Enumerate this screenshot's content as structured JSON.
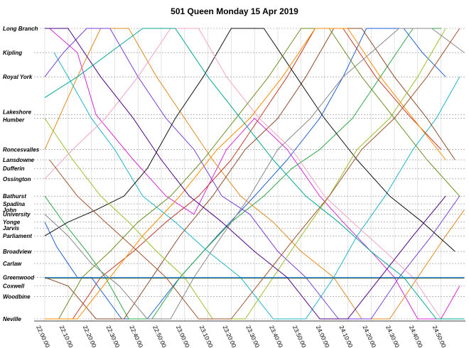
{
  "chart_data": {
    "type": "line",
    "title": "501 Queen Monday  15 Apr 2019",
    "xlabel": "",
    "ylabel": "",
    "x_ticks": [
      "22:00:00",
      "22:10:00",
      "22:20:00",
      "22:30:00",
      "22:40:00",
      "22:50:00",
      "23:00:00",
      "23:10:00",
      "23:20:00",
      "23:30:00",
      "23:40:00",
      "23:50:00",
      "24:00:00",
      "24:10:00",
      "24:20:00",
      "24:30:00",
      "24:40:00",
      "24:50:00"
    ],
    "x_range_minutes": [
      0,
      182
    ],
    "stops": [
      {
        "name": "Long Branch",
        "km": 0.0
      },
      {
        "name": "Kipling",
        "km": 1.4
      },
      {
        "name": "Royal York",
        "km": 2.8
      },
      {
        "name": "Lakeshore",
        "km": 5.0
      },
      {
        "name": "Humber",
        "km": 5.2
      },
      {
        "name": "Roncesvalles",
        "km": 7.0
      },
      {
        "name": "Lansdowne",
        "km": 7.6
      },
      {
        "name": "Dufferin",
        "km": 8.1
      },
      {
        "name": "Ossington",
        "km": 8.7
      },
      {
        "name": "Bathurst",
        "km": 9.7
      },
      {
        "name": "Spadina",
        "km": 10.15
      },
      {
        "name": "John",
        "km": 10.5
      },
      {
        "name": "University",
        "km": 10.75
      },
      {
        "name": "Yonge",
        "km": 11.2
      },
      {
        "name": "Jarvis",
        "km": 11.55
      },
      {
        "name": "Parliament",
        "km": 12.0
      },
      {
        "name": "Broadview",
        "km": 12.9
      },
      {
        "name": "Carlaw",
        "km": 13.6
      },
      {
        "name": "Greenwood",
        "km": 14.4
      },
      {
        "name": "Coxwell",
        "km": 14.9
      },
      {
        "name": "Woodbine",
        "km": 15.5
      },
      {
        "name": "Neville",
        "km": 16.8
      }
    ],
    "grid": true,
    "legend": "none",
    "series": [
      {
        "color": "#1f5fd6",
        "x": [
          0,
          5,
          14,
          20,
          33,
          44,
          58,
          74,
          90,
          104,
          118,
          128,
          138,
          154,
          162,
          172
        ],
        "y": [
          11.2,
          12.6,
          14.4,
          14.4,
          16.8,
          16.8,
          14.4,
          12.0,
          9.7,
          7.6,
          5.2,
          2.8,
          0.0,
          0.0,
          1.4,
          2.8
        ]
      },
      {
        "color": "#d62ad6",
        "x": [
          2,
          14,
          22,
          38,
          52,
          64,
          78,
          90,
          104,
          118,
          128,
          140,
          150,
          160,
          170,
          178
        ],
        "y": [
          0.0,
          1.4,
          5.0,
          7.6,
          9.7,
          10.75,
          7.0,
          5.2,
          7.0,
          9.7,
          11.2,
          12.9,
          14.4,
          16.8,
          16.8,
          14.9
        ]
      },
      {
        "color": "#2fa84a",
        "x": [
          0,
          8,
          18,
          26,
          36,
          46,
          58,
          68,
          80,
          94,
          106,
          118,
          132,
          144,
          158,
          170
        ],
        "y": [
          9.7,
          11.2,
          12.9,
          14.4,
          16.8,
          16.8,
          14.4,
          12.9,
          11.2,
          9.7,
          8.1,
          7.0,
          5.2,
          2.8,
          0.0,
          0.0
        ]
      },
      {
        "color": "#e08a1e",
        "x": [
          0,
          6,
          14,
          24,
          36,
          48,
          60,
          72,
          84,
          98,
          110,
          124,
          136,
          148,
          160,
          172,
          180
        ],
        "y": [
          7.0,
          5.2,
          2.8,
          0.0,
          0.0,
          2.8,
          5.2,
          7.6,
          9.7,
          11.2,
          12.9,
          14.4,
          16.8,
          16.8,
          14.4,
          12.0,
          10.5
        ]
      },
      {
        "color": "#20b5c8",
        "x": [
          4,
          10,
          20,
          30,
          42,
          56,
          70,
          84,
          98,
          112,
          124,
          134,
          146,
          158,
          168,
          178
        ],
        "y": [
          1.4,
          2.8,
          5.2,
          7.0,
          9.7,
          11.2,
          12.9,
          14.4,
          16.8,
          16.8,
          14.4,
          12.0,
          9.7,
          7.0,
          5.2,
          2.8
        ]
      },
      {
        "color": "#8b4a2a",
        "x": [
          0,
          10,
          22,
          34,
          46,
          58,
          72,
          86,
          100,
          112,
          124,
          136,
          150,
          164,
          176
        ],
        "y": [
          14.4,
          14.9,
          16.8,
          16.8,
          14.4,
          12.0,
          9.7,
          7.0,
          5.2,
          2.8,
          0.0,
          0.0,
          2.8,
          5.2,
          7.6
        ]
      },
      {
        "color": "#7a3fd8",
        "x": [
          0,
          8,
          18,
          28,
          40,
          52,
          64,
          76,
          88,
          100,
          112,
          126,
          140,
          152,
          166,
          178
        ],
        "y": [
          2.8,
          1.4,
          0.0,
          0.0,
          2.8,
          5.2,
          7.0,
          9.7,
          10.75,
          12.9,
          14.4,
          16.8,
          16.8,
          14.4,
          12.0,
          9.7
        ]
      },
      {
        "color": "#c0392b",
        "x": [
          0,
          12,
          24,
          38,
          52,
          66,
          80,
          92,
          104,
          116,
          128,
          142,
          156,
          170
        ],
        "y": [
          16.8,
          16.8,
          14.4,
          12.9,
          11.2,
          9.7,
          7.6,
          5.2,
          2.8,
          0.0,
          0.0,
          2.8,
          5.0,
          7.0
        ]
      },
      {
        "color": "#111111",
        "x": [
          0,
          10,
          22,
          34,
          44,
          56,
          68,
          80,
          94,
          108,
          120,
          134,
          148,
          162,
          176
        ],
        "y": [
          12.0,
          11.2,
          10.5,
          9.7,
          8.1,
          5.2,
          2.8,
          0.0,
          0.0,
          2.8,
          5.2,
          7.6,
          9.7,
          11.2,
          12.9
        ]
      },
      {
        "color": "#9bbf2a",
        "x": [
          0,
          12,
          24,
          36,
          48,
          60,
          72,
          86,
          98,
          110,
          122,
          134,
          148,
          160,
          172
        ],
        "y": [
          5.2,
          7.6,
          9.7,
          11.2,
          12.9,
          14.4,
          16.8,
          16.8,
          14.4,
          12.0,
          9.7,
          7.0,
          5.2,
          2.8,
          0.0
        ]
      },
      {
        "color": "#888888",
        "x": [
          0,
          10,
          20,
          32,
          44,
          54,
          64,
          76,
          88,
          100,
          114,
          128,
          140,
          152,
          166,
          180
        ],
        "y": [
          10.75,
          12.0,
          13.6,
          14.9,
          16.8,
          16.8,
          14.4,
          12.0,
          9.7,
          7.0,
          5.2,
          2.8,
          1.4,
          0.0,
          0.0,
          1.4
        ]
      },
      {
        "color": "#f2a3c7",
        "x": [
          0,
          12,
          26,
          40,
          54,
          66,
          78,
          92,
          106,
          120,
          132,
          146,
          158,
          170,
          180
        ],
        "y": [
          8.7,
          7.0,
          5.2,
          2.8,
          0.0,
          0.0,
          2.8,
          5.2,
          7.0,
          9.7,
          11.2,
          12.9,
          14.4,
          16.8,
          16.8
        ]
      },
      {
        "color": "#6b8e23",
        "x": [
          6,
          16,
          28,
          40,
          54,
          68,
          82,
          96,
          110,
          122,
          136,
          150,
          164,
          178
        ],
        "y": [
          16.8,
          14.4,
          12.9,
          11.2,
          9.7,
          7.6,
          5.2,
          2.8,
          0.0,
          0.0,
          2.8,
          5.2,
          7.6,
          9.7
        ]
      },
      {
        "color": "#1e90ff",
        "x": [
          0,
          180
        ],
        "y": [
          14.4,
          14.4
        ]
      },
      {
        "color": "#2f4f2f",
        "x": [
          0,
          180
        ],
        "y": [
          14.45,
          14.45
        ]
      },
      {
        "color": "#ff8c00",
        "x": [
          0,
          14,
          28,
          42,
          58,
          74,
          88,
          102,
          116,
          130,
          144,
          158,
          172
        ],
        "y": [
          16.8,
          16.8,
          14.4,
          12.0,
          9.7,
          7.0,
          5.2,
          2.8,
          0.0,
          0.0,
          2.8,
          5.2,
          7.6
        ]
      },
      {
        "color": "#4b0082",
        "x": [
          0,
          10,
          24,
          38,
          50,
          62,
          76,
          90,
          104,
          118,
          130,
          144,
          158,
          172
        ],
        "y": [
          0.0,
          0.0,
          2.8,
          5.2,
          7.6,
          9.7,
          11.2,
          12.9,
          14.4,
          16.8,
          16.8,
          14.4,
          12.0,
          9.7
        ]
      },
      {
        "color": "#a0522d",
        "x": [
          2,
          14,
          26,
          40,
          52,
          66,
          80,
          94,
          108,
          122,
          136,
          150,
          164,
          178
        ],
        "y": [
          7.6,
          9.7,
          11.2,
          12.9,
          14.4,
          16.8,
          16.8,
          14.4,
          12.0,
          9.7,
          7.0,
          5.2,
          2.8,
          0.0
        ]
      },
      {
        "color": "#00a896",
        "x": [
          0,
          14,
          28,
          42,
          56,
          70,
          84,
          98,
          112,
          126,
          140,
          154,
          168,
          180
        ],
        "y": [
          4.0,
          2.8,
          1.4,
          0.0,
          0.0,
          2.8,
          5.2,
          7.6,
          9.7,
          11.2,
          12.9,
          14.4,
          16.8,
          16.8
        ]
      }
    ]
  }
}
